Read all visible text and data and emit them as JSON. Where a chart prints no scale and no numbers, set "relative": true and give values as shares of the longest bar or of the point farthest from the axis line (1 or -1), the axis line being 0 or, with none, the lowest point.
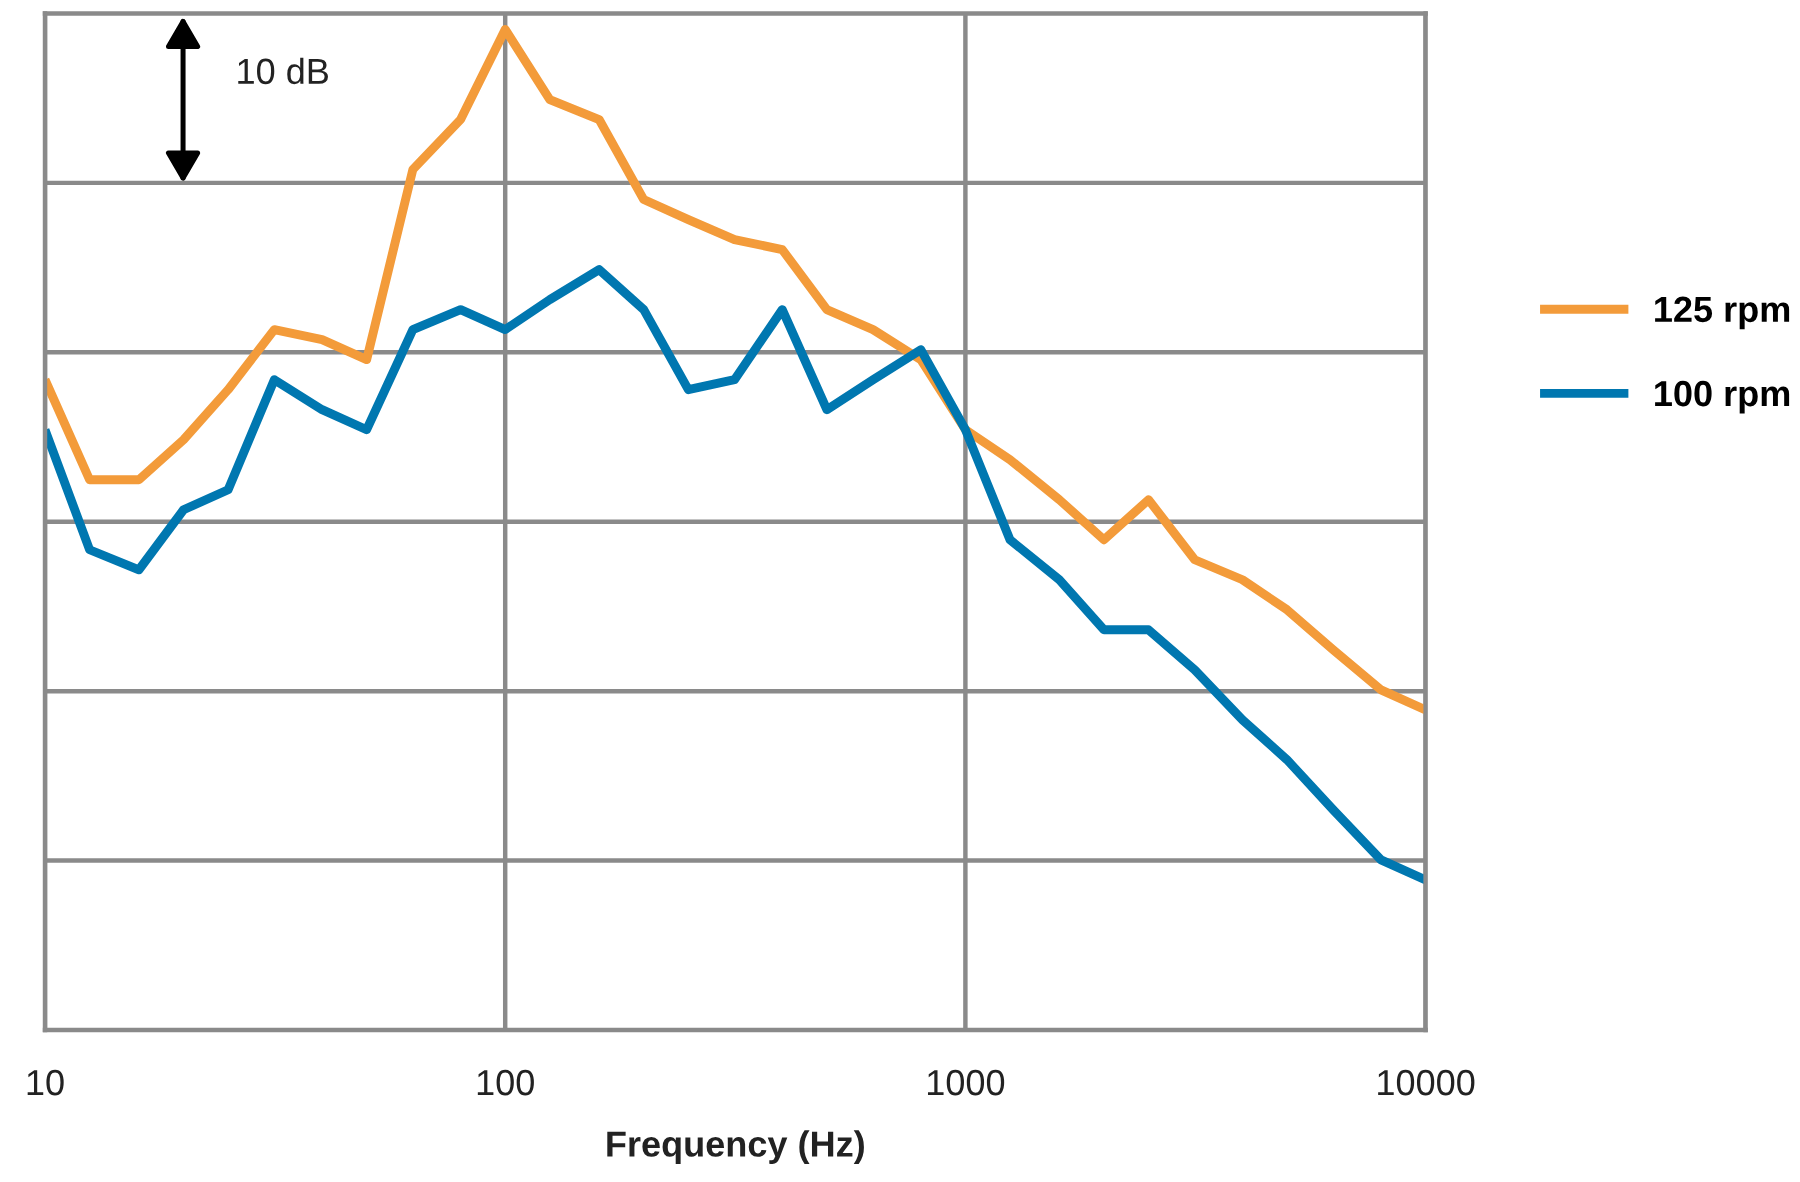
{
  "chart_data": {
    "type": "line",
    "xlabel": "Frequency (Hz)",
    "log": "x",
    "relative": true,
    "grid": true,
    "legend": "right",
    "line_style": "solid",
    "marker": "none",
    "x": [
      10,
      12.5,
      16,
      20,
      25,
      31.5,
      40,
      50,
      63,
      80,
      100,
      125,
      160,
      200,
      250,
      315,
      400,
      500,
      630,
      800,
      1000,
      1250,
      1600,
      2000,
      2500,
      3150,
      4000,
      5000,
      6300,
      8000,
      10000
    ],
    "xlim": [
      10,
      10000
    ],
    "xticks": [
      10,
      100,
      1000,
      10000
    ],
    "annotations": [
      "10 dB"
    ],
    "series": [
      {
        "name": "125 rpm",
        "color": "#f39b3a",
        "values": [
          0.65,
          0.55,
          0.55,
          0.59,
          0.64,
          0.7,
          0.69,
          0.67,
          0.86,
          0.91,
          1.0,
          0.93,
          0.91,
          0.83,
          0.81,
          0.79,
          0.78,
          0.72,
          0.7,
          0.67,
          0.6,
          0.57,
          0.53,
          0.49,
          0.53,
          0.47,
          0.45,
          0.42,
          0.38,
          0.34,
          0.32
        ]
      },
      {
        "name": "100 rpm",
        "color": "#0077b0",
        "values": [
          0.6,
          0.48,
          0.46,
          0.52,
          0.54,
          0.65,
          0.62,
          0.6,
          0.7,
          0.72,
          0.7,
          0.73,
          0.76,
          0.72,
          0.64,
          0.65,
          0.72,
          0.62,
          0.65,
          0.68,
          0.6,
          0.49,
          0.45,
          0.4,
          0.4,
          0.36,
          0.31,
          0.27,
          0.22,
          0.17,
          0.15
        ]
      }
    ]
  }
}
